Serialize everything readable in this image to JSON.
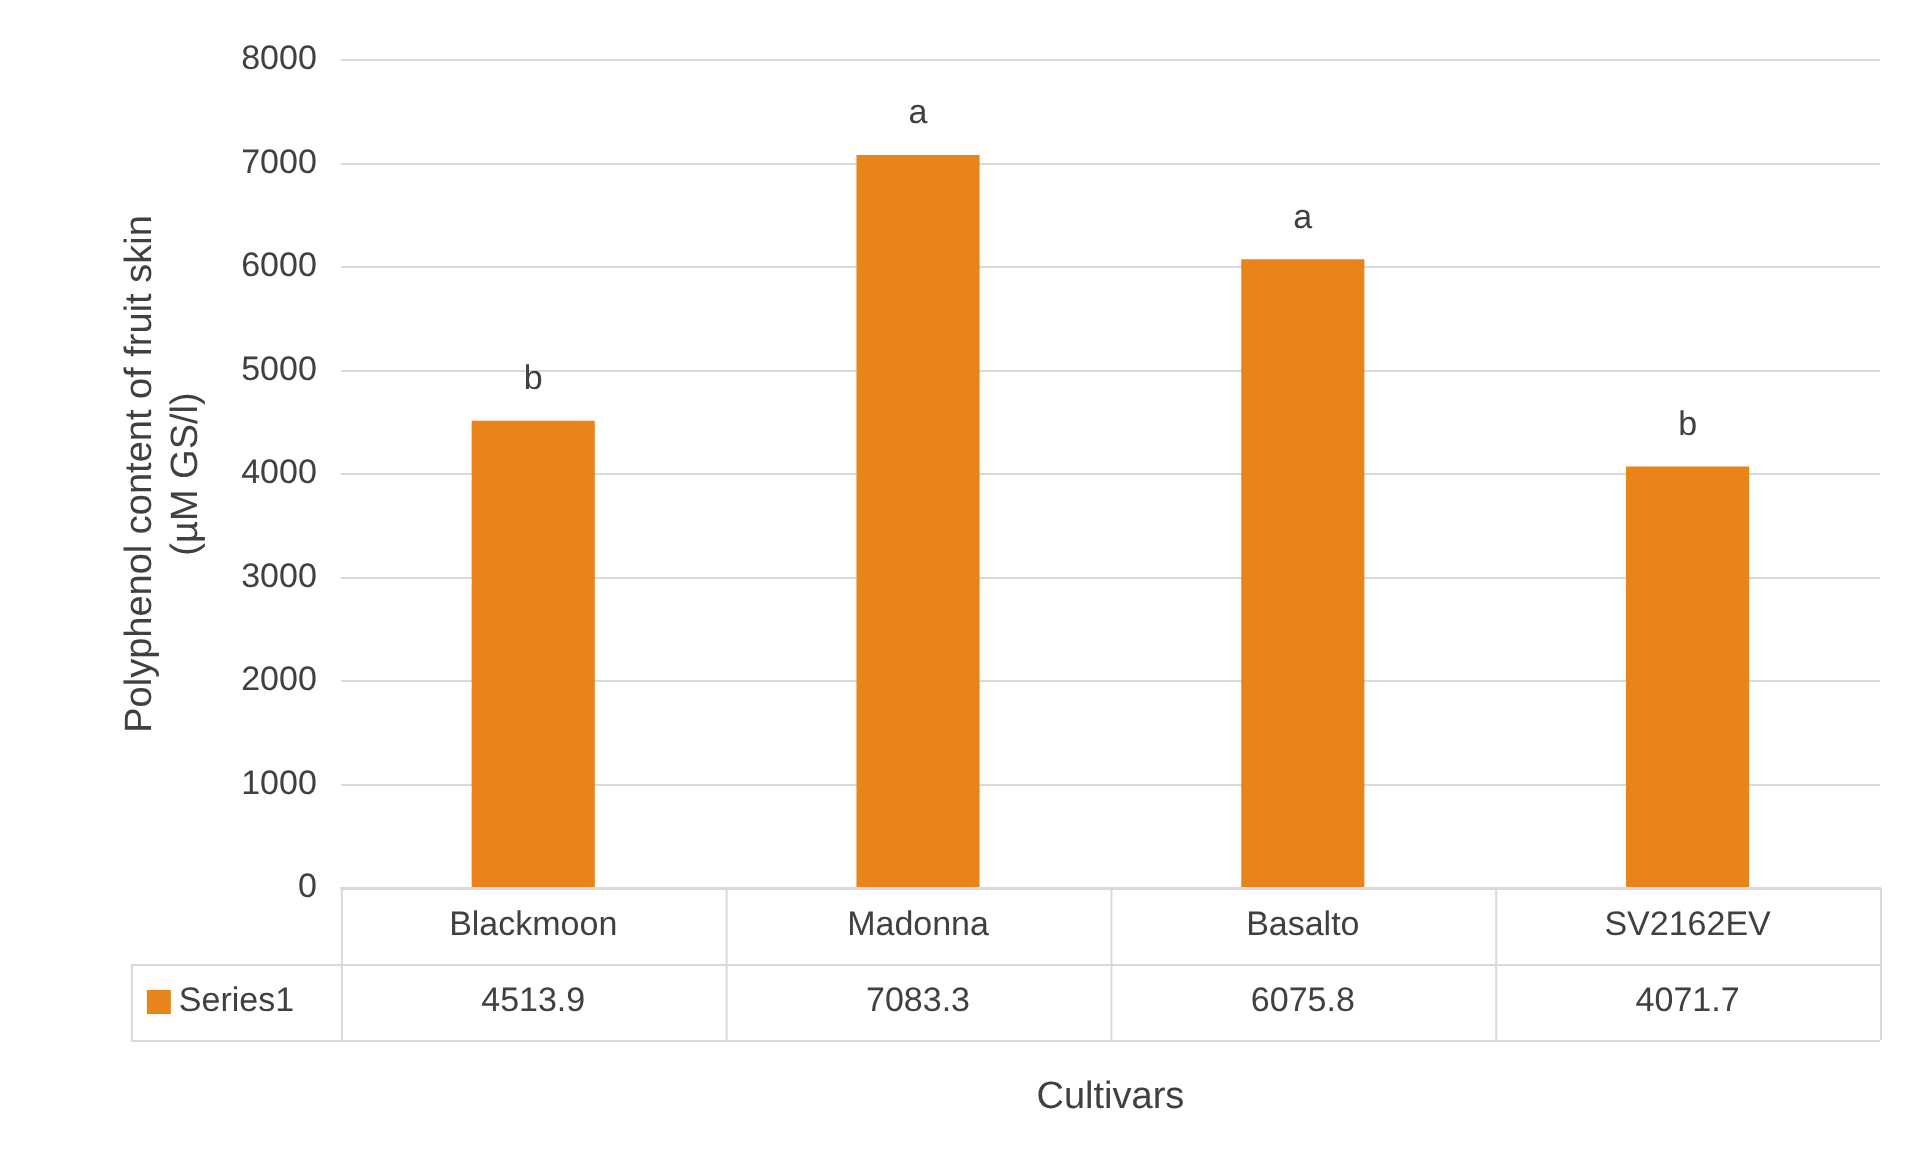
{
  "chart_data": {
    "type": "bar",
    "categories": [
      "Blackmoon",
      "Madonna",
      "Basalto",
      "SV2162EV"
    ],
    "series": [
      {
        "name": "Series1",
        "color": "#e8841a",
        "values": [
          4513.9,
          7083.3,
          6075.8,
          4071.7
        ]
      }
    ],
    "xlabel": "Cultivars",
    "ylabel": "Polyphenol content of fruit skin\n(µM GS/l)",
    "ylim": [
      0,
      8000
    ],
    "yticks": [
      0,
      1000,
      2000,
      3000,
      4000,
      5000,
      6000,
      7000,
      8000
    ],
    "grid": "y",
    "data_labels": true,
    "annotations": [
      {
        "text": "b",
        "x": "Blackmoon",
        "y": 4513.9
      },
      {
        "text": "a",
        "x": "Madonna",
        "y": 7083.3
      },
      {
        "text": "a",
        "x": "Basalto",
        "y": 6075.8
      },
      {
        "text": "b",
        "x": "SV2162EV",
        "y": 4071.7
      }
    ]
  }
}
